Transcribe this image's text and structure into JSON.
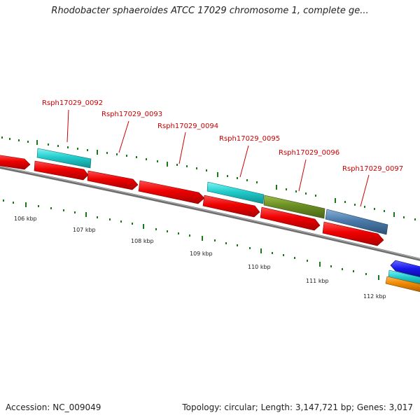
{
  "title": "Rhodobacter sphaeroides ATCC 17029 chromosome 1, complete ge...",
  "footer": {
    "accession": "Accession: NC_009049",
    "summary": "Topology: circular; Length: 3,147,721 bp; Genes: 3,017"
  },
  "colors": {
    "label": "#cc0000",
    "backbone": "#7f7f7f",
    "tick": "#1a7a1a",
    "cds_red": "#ee0000",
    "cyan": "#22cccc",
    "olive": "#6b8e23",
    "steel": "#4a7aaa",
    "blue": "#1a1aee",
    "orange": "#ee8800"
  },
  "kbp_labels": [
    "106 kbp",
    "107 kbp",
    "108 kbp",
    "109 kbp",
    "110 kbp",
    "111 kbp",
    "112 kbp"
  ],
  "gene_labels": [
    "Rsph17029_0092",
    "Rsph17029_0093",
    "Rsph17029_0094",
    "Rsph17029_0095",
    "Rsph17029_0096",
    "Rsph17029_0097"
  ]
}
